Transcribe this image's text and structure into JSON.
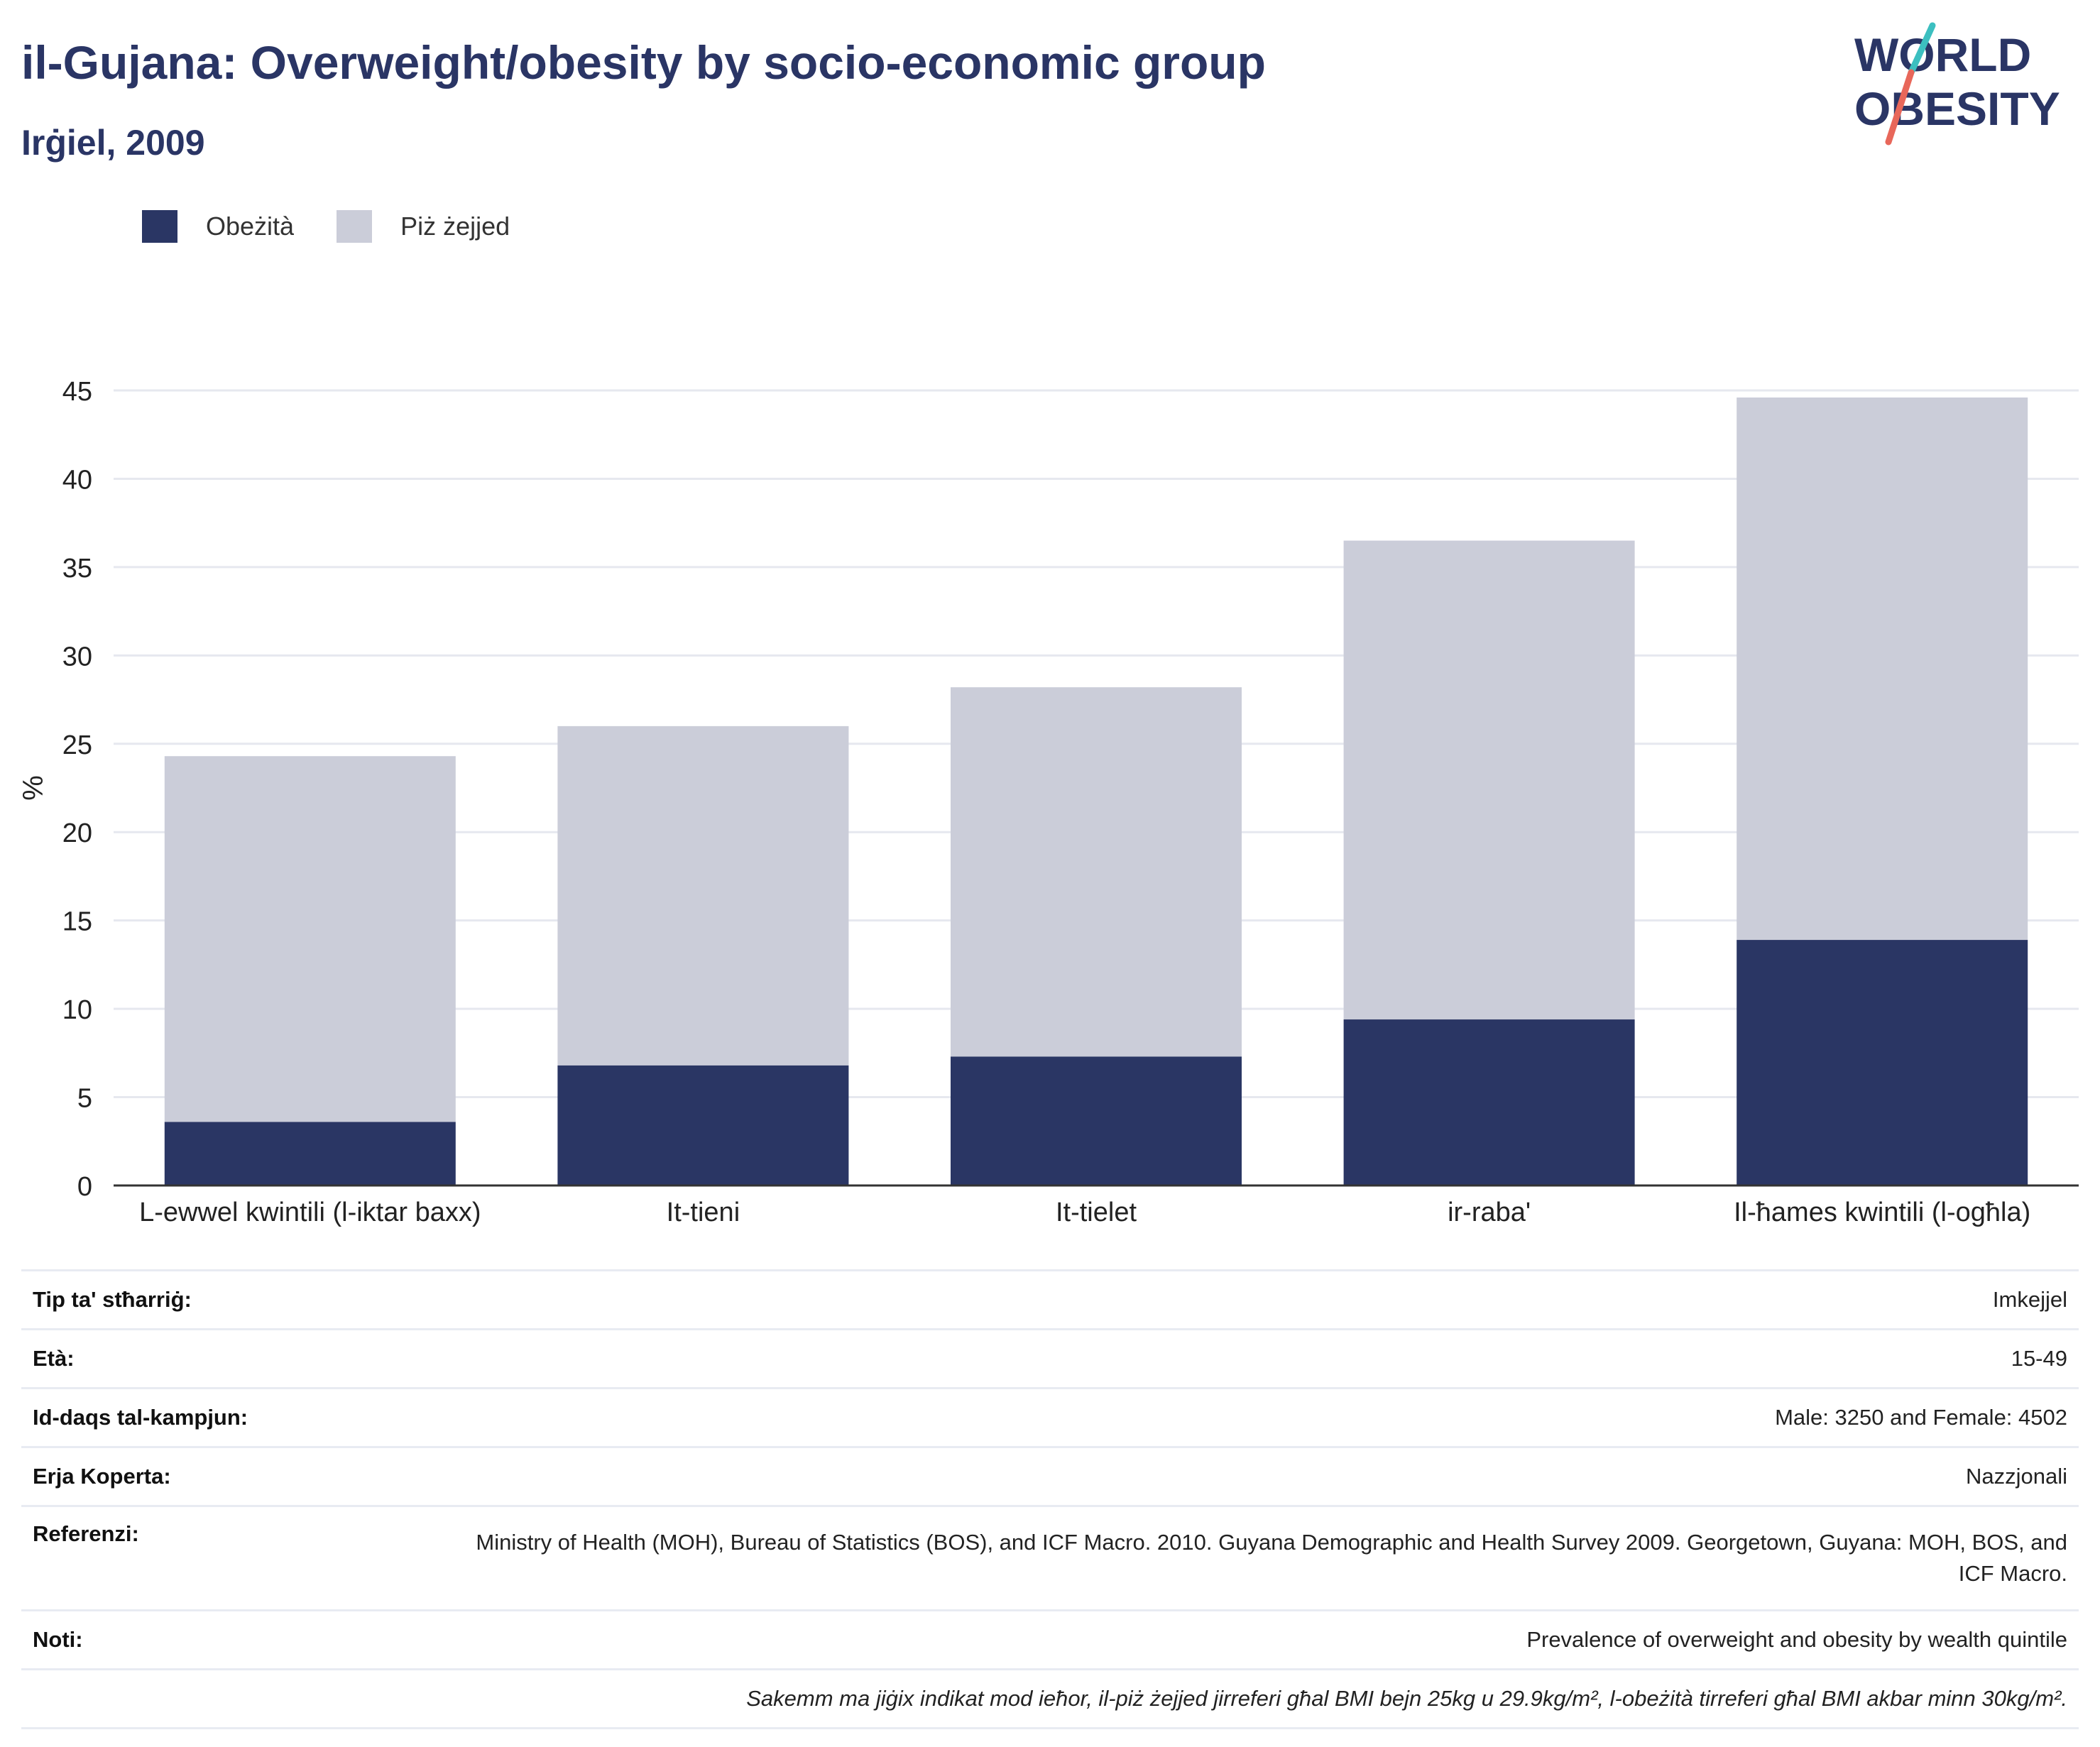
{
  "header": {
    "title": "il-Gujana: Overweight/obesity by socio-economic group",
    "subtitle": "Irġiel, 2009"
  },
  "logo": {
    "line1": "WORLD",
    "line2": "OBESITY"
  },
  "colors": {
    "obesity": "#2a3664",
    "overweight": "#cbcdd9",
    "title": "#2a3565",
    "logo_slash_teal": "#3cbfc0",
    "logo_slash_red": "#e8675a"
  },
  "legend": {
    "items": [
      "Obeżità",
      "Piż żejjed"
    ]
  },
  "chart_data": {
    "type": "bar",
    "stacked": true,
    "categories": [
      "L-ewwel kwintili (l-iktar baxx)",
      "It-tieni",
      "It-tielet",
      "ir-raba'",
      "Il-ħames kwintili (l-ogħla)"
    ],
    "series": [
      {
        "name": "Obeżità",
        "values": [
          3.6,
          6.8,
          7.3,
          9.4,
          13.9
        ]
      },
      {
        "name": "Piż żejjed",
        "values": [
          20.7,
          19.2,
          20.9,
          27.1,
          30.7
        ]
      }
    ],
    "xlabel": "",
    "ylabel": "%",
    "ylim": [
      0,
      45
    ],
    "yticks": [
      0,
      5,
      10,
      15,
      20,
      25,
      30,
      35,
      40,
      45
    ],
    "grid": true,
    "legend_position": "top-left"
  },
  "meta": {
    "rows": [
      {
        "label": "Tip ta' stħarriġ:",
        "value": "Imkejjel"
      },
      {
        "label": "Età:",
        "value": "15-49"
      },
      {
        "label": "Id-daqs tal-kampjun:",
        "value": "Male: 3250 and Female: 4502"
      },
      {
        "label": "Erja Koperta:",
        "value": "Nazzjonali"
      },
      {
        "label": "Referenzi:",
        "value": "Ministry of Health (MOH), Bureau of Statistics (BOS), and ICF Macro. 2010. Guyana Demographic and Health Survey 2009. Georgetown, Guyana: MOH, BOS, and ICF Macro."
      },
      {
        "label": "Noti:",
        "value": "Prevalence of overweight and obesity by wealth quintile"
      },
      {
        "label": "",
        "value": "Sakemm ma jiġix indikat mod ieħor, il-piż żejjed jirreferi għal BMI bejn 25kg u 29.9kg/m², l-obeżità tirreferi għal BMI akbar minn 30kg/m²."
      }
    ]
  }
}
